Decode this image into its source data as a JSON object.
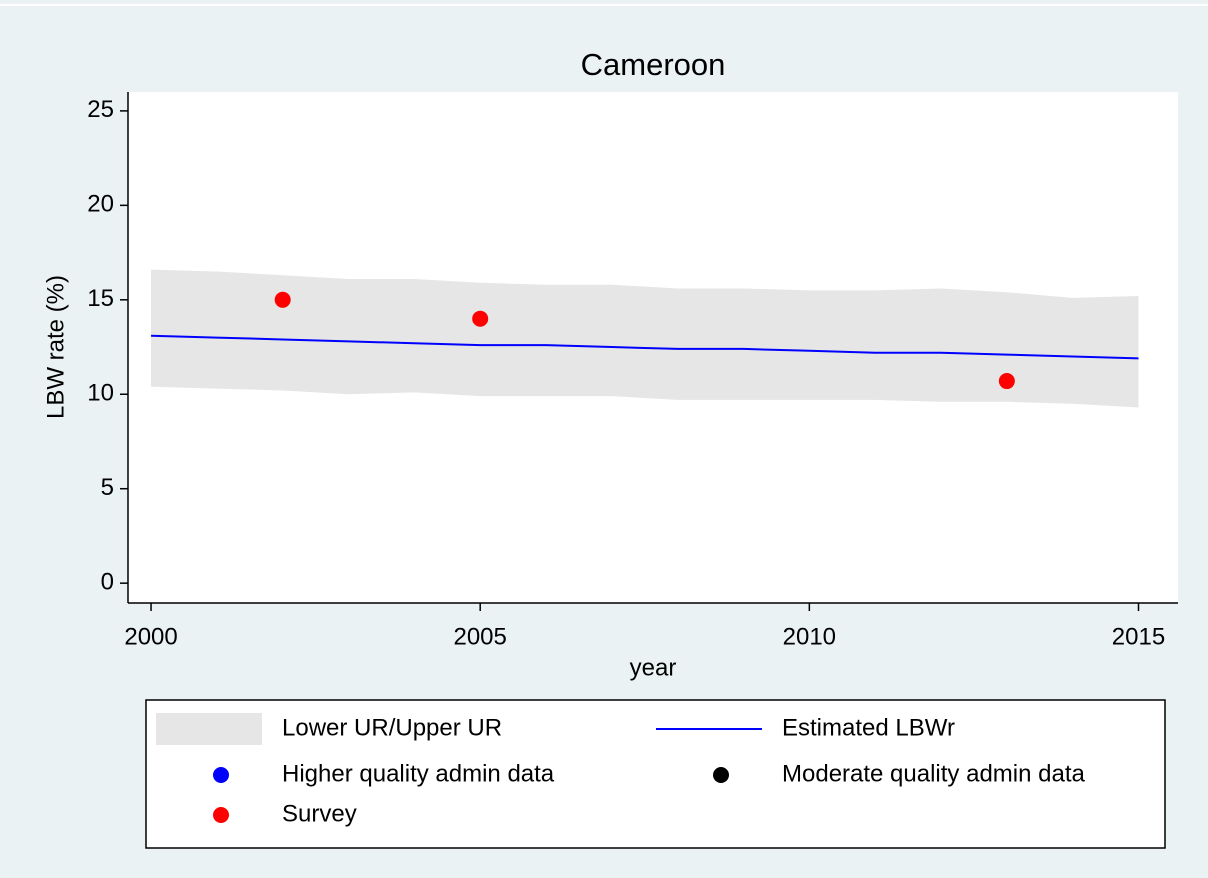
{
  "chart_data": {
    "type": "line",
    "title": "Cameroon",
    "x_label": "year",
    "y_label": "LBW rate (%)",
    "x": [
      2000,
      2001,
      2002,
      2003,
      2004,
      2005,
      2006,
      2007,
      2008,
      2009,
      2010,
      2011,
      2012,
      2013,
      2014,
      2015
    ],
    "band": {
      "name": "Lower UR/Upper UR",
      "color": "#e6e6e6",
      "lower": [
        10.4,
        10.3,
        10.2,
        10.0,
        10.1,
        9.9,
        9.9,
        9.9,
        9.7,
        9.7,
        9.7,
        9.7,
        9.6,
        9.6,
        9.5,
        9.3
      ],
      "upper": [
        16.6,
        16.5,
        16.3,
        16.1,
        16.1,
        15.9,
        15.8,
        15.8,
        15.6,
        15.6,
        15.5,
        15.5,
        15.6,
        15.4,
        15.1,
        15.2
      ]
    },
    "series": [
      {
        "name": "Estimated LBWr",
        "color": "#0000ff",
        "type": "line",
        "values": [
          13.1,
          13.0,
          12.9,
          12.8,
          12.7,
          12.6,
          12.6,
          12.5,
          12.4,
          12.4,
          12.3,
          12.2,
          12.2,
          12.1,
          12.0,
          11.9
        ]
      },
      {
        "name": "Higher quality admin data",
        "color": "#0000ff",
        "type": "scatter",
        "x": [],
        "values": []
      },
      {
        "name": "Moderate quality admin data",
        "color": "#000000",
        "type": "scatter",
        "x": [],
        "values": []
      },
      {
        "name": "Survey",
        "color": "#ff0000",
        "type": "scatter",
        "x": [
          2002,
          2005,
          2013
        ],
        "values": [
          15.0,
          14.0,
          10.7
        ]
      }
    ],
    "xlim": [
      1999.65,
      2015.6
    ],
    "ylim": [
      -1.05,
      26
    ],
    "xticks": [
      2000,
      2005,
      2010,
      2015
    ],
    "yticks": [
      0,
      5,
      10,
      15,
      20,
      25
    ]
  }
}
